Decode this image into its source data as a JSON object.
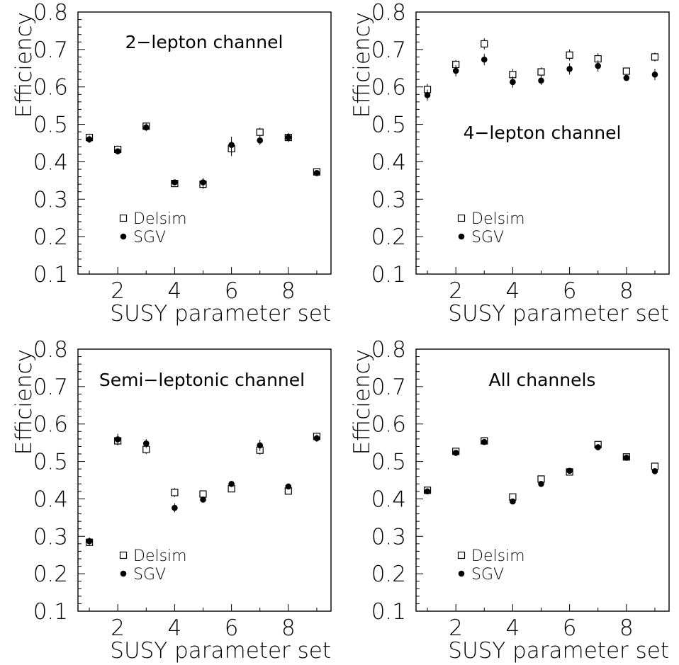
{
  "panels": [
    {
      "chart_data": {
        "type": "scatter",
        "title": "2−lepton channel",
        "xlabel": "SUSY parameter set",
        "ylabel": "Efficiency",
        "xlim": [
          0.6,
          9.5
        ],
        "ylim": [
          0.1,
          0.8
        ],
        "xticks": [
          2,
          4,
          6,
          8
        ],
        "yticks": [
          0.1,
          0.2,
          0.3,
          0.4,
          0.5,
          0.6,
          0.7,
          0.8
        ],
        "grid": false,
        "legend_position": "lower-left",
        "series": [
          {
            "name": "Delsim",
            "marker": "open-square",
            "x": [
              1,
              2,
              3,
              4,
              5,
              6,
              7,
              8,
              9
            ],
            "y": [
              0.465,
              0.433,
              0.495,
              0.342,
              0.34,
              0.435,
              0.479,
              0.465,
              0.373
            ],
            "err": [
              0.01,
              0.01,
              0.01,
              0.008,
              0.012,
              0.02,
              0.012,
              0.01,
              0.008
            ]
          },
          {
            "name": "SGV",
            "marker": "filled-circle",
            "x": [
              1,
              2,
              3,
              4,
              5,
              6,
              7,
              8,
              9
            ],
            "y": [
              0.46,
              0.428,
              0.492,
              0.345,
              0.345,
              0.445,
              0.457,
              0.465,
              0.37
            ],
            "err": [
              0.01,
              0.008,
              0.01,
              0.006,
              0.012,
              0.022,
              0.012,
              0.012,
              0.006
            ]
          }
        ]
      }
    },
    {
      "chart_data": {
        "type": "scatter",
        "title": "4−lepton channel",
        "xlabel": "SUSY parameter set",
        "ylabel": "Efficiency",
        "xlim": [
          0.6,
          9.5
        ],
        "ylim": [
          0.1,
          0.8
        ],
        "xticks": [
          2,
          4,
          6,
          8
        ],
        "yticks": [
          0.1,
          0.2,
          0.3,
          0.4,
          0.5,
          0.6,
          0.7,
          0.8
        ],
        "grid": false,
        "legend_position": "lower-left",
        "series": [
          {
            "name": "Delsim",
            "marker": "open-square",
            "x": [
              1,
              2,
              3,
              4,
              5,
              6,
              7,
              8,
              9
            ],
            "y": [
              0.593,
              0.66,
              0.715,
              0.633,
              0.64,
              0.685,
              0.675,
              0.642,
              0.68
            ],
            "err": [
              0.015,
              0.012,
              0.015,
              0.015,
              0.012,
              0.015,
              0.015,
              0.008,
              0.012
            ]
          },
          {
            "name": "SGV",
            "marker": "filled-circle",
            "x": [
              1,
              2,
              3,
              4,
              5,
              6,
              7,
              8,
              9
            ],
            "y": [
              0.578,
              0.643,
              0.673,
              0.613,
              0.617,
              0.648,
              0.656,
              0.624,
              0.633
            ],
            "err": [
              0.015,
              0.015,
              0.015,
              0.015,
              0.012,
              0.015,
              0.015,
              0.008,
              0.015
            ]
          }
        ]
      }
    },
    {
      "chart_data": {
        "type": "scatter",
        "title": "Semi−leptonic channel",
        "xlabel": "SUSY parameter set",
        "ylabel": "Efficiency",
        "xlim": [
          0.6,
          9.5
        ],
        "ylim": [
          0.1,
          0.8
        ],
        "xticks": [
          2,
          4,
          6,
          8
        ],
        "yticks": [
          0.1,
          0.2,
          0.3,
          0.4,
          0.5,
          0.6,
          0.7,
          0.8
        ],
        "grid": false,
        "legend_position": "lower-left",
        "series": [
          {
            "name": "Delsim",
            "marker": "open-square",
            "x": [
              1,
              2,
              3,
              4,
              5,
              6,
              7,
              8,
              9
            ],
            "y": [
              0.284,
              0.555,
              0.532,
              0.417,
              0.413,
              0.427,
              0.53,
              0.421,
              0.567
            ],
            "err": [
              0.01,
              0.012,
              0.012,
              0.012,
              0.006,
              0.006,
              0.012,
              0.006,
              0.01
            ]
          },
          {
            "name": "SGV",
            "marker": "filled-circle",
            "x": [
              1,
              2,
              3,
              4,
              5,
              6,
              7,
              8,
              9
            ],
            "y": [
              0.287,
              0.559,
              0.548,
              0.376,
              0.398,
              0.44,
              0.543,
              0.433,
              0.562
            ],
            "err": [
              0.01,
              0.015,
              0.012,
              0.012,
              0.006,
              0.006,
              0.015,
              0.006,
              0.01
            ]
          }
        ]
      }
    },
    {
      "chart_data": {
        "type": "scatter",
        "title": "All channels",
        "xlabel": "SUSY parameter set",
        "ylabel": "Efficiency",
        "xlim": [
          0.6,
          9.5
        ],
        "ylim": [
          0.1,
          0.8
        ],
        "xticks": [
          2,
          4,
          6,
          8
        ],
        "yticks": [
          0.1,
          0.2,
          0.3,
          0.4,
          0.5,
          0.6,
          0.7,
          0.8
        ],
        "grid": false,
        "legend_position": "lower-left",
        "series": [
          {
            "name": "Delsim",
            "marker": "open-square",
            "x": [
              1,
              2,
              3,
              4,
              5,
              6,
              7,
              8,
              9
            ],
            "y": [
              0.423,
              0.527,
              0.555,
              0.405,
              0.453,
              0.472,
              0.545,
              0.512,
              0.487
            ],
            "err": [
              0.005,
              0.005,
              0.005,
              0.005,
              0.005,
              0.005,
              0.005,
              0.005,
              0.005
            ]
          },
          {
            "name": "SGV",
            "marker": "filled-circle",
            "x": [
              1,
              2,
              3,
              4,
              5,
              6,
              7,
              8,
              9
            ],
            "y": [
              0.42,
              0.523,
              0.552,
              0.393,
              0.44,
              0.475,
              0.538,
              0.51,
              0.474
            ],
            "err": [
              0.005,
              0.005,
              0.005,
              0.005,
              0.005,
              0.005,
              0.005,
              0.005,
              0.005
            ]
          }
        ]
      }
    }
  ]
}
